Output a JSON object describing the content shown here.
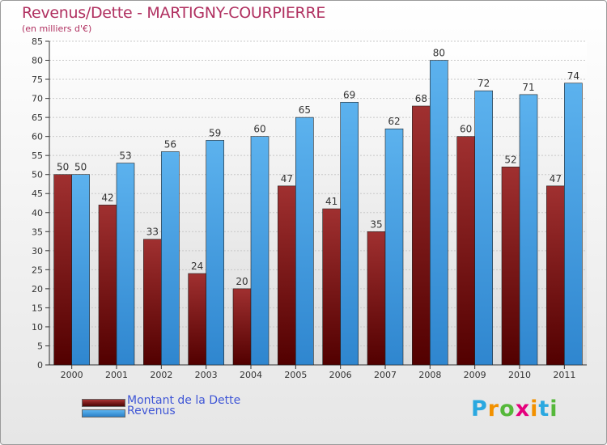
{
  "title": "Revenus/Dette - MARTIGNY-COURPIERRE",
  "subtitle": "(en milliers d'€)",
  "logo": {
    "text": "Proxiti",
    "letters": [
      "P",
      "r",
      "o",
      "x",
      "i",
      "t",
      "i"
    ],
    "colors": [
      "#2aa8e0",
      "#f29100",
      "#55b83a",
      "#e5007d",
      "#f29100",
      "#2aa8e0",
      "#55b83a"
    ]
  },
  "colors": {
    "dette": "#7a1a1a",
    "revenus": "#3f9fe0",
    "title": "#b03060",
    "legend_text": "#3f56d6"
  },
  "chart_data": {
    "type": "bar",
    "title": "Revenus/Dette - MARTIGNY-COURPIERRE",
    "subtitle": "(en milliers d'€)",
    "xlabel": "",
    "ylabel": "",
    "categories": [
      "2000",
      "2001",
      "2002",
      "2003",
      "2004",
      "2005",
      "2006",
      "2007",
      "2008",
      "2009",
      "2010",
      "2011"
    ],
    "series": [
      {
        "name": "Montant de la Dette",
        "values": [
          50,
          42,
          33,
          24,
          20,
          47,
          41,
          35,
          68,
          60,
          52,
          47
        ]
      },
      {
        "name": "Revenus",
        "values": [
          50,
          53,
          56,
          59,
          60,
          65,
          69,
          62,
          80,
          72,
          71,
          74
        ]
      }
    ],
    "ylim": [
      0,
      85
    ],
    "yticks": [
      0,
      5,
      10,
      15,
      20,
      25,
      30,
      35,
      40,
      45,
      50,
      55,
      60,
      65,
      70,
      75,
      80,
      85
    ],
    "grid": true,
    "legend_position": "bottom-left"
  }
}
